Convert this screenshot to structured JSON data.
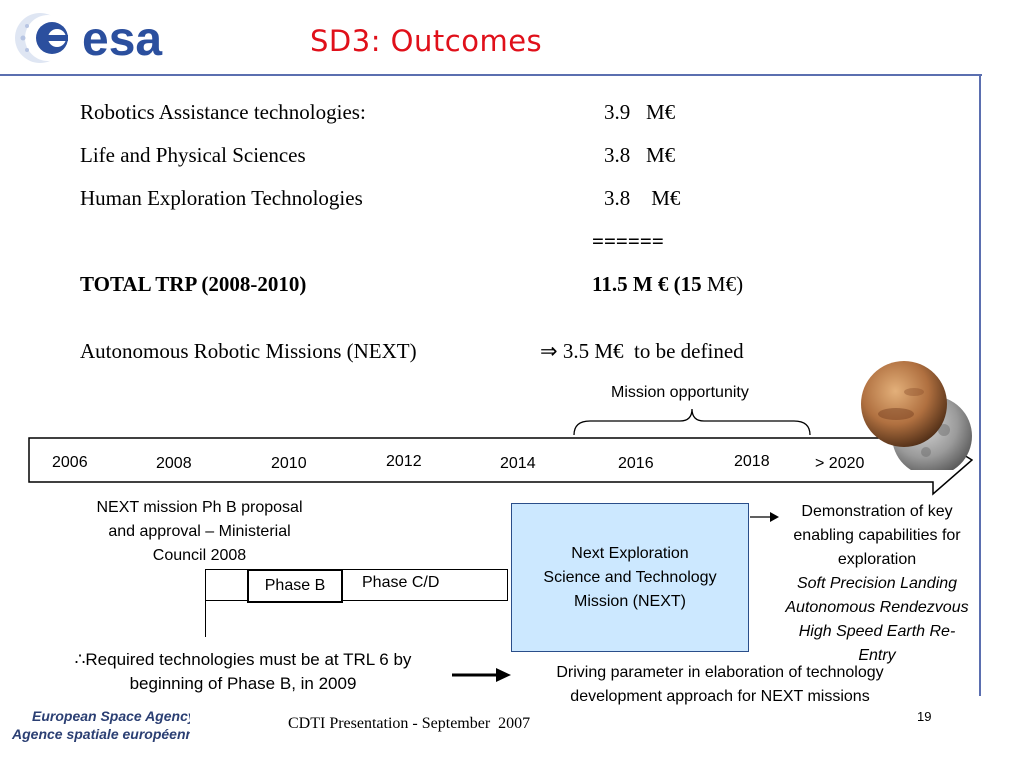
{
  "header": {
    "logo_text": "esa",
    "title": "SD3: Outcomes"
  },
  "budget": {
    "rows": [
      {
        "label": "Robotics Assistance technologies:",
        "value": "3.9   M€"
      },
      {
        "label": "Life and Physical Sciences",
        "value": "3.8   M€"
      },
      {
        "label": "Human Exploration Technologies",
        "value": "3.8    M€"
      }
    ],
    "separator": "======",
    "total_label": "TOTAL TRP (2008-2010)",
    "total_value": "11.5 M € (15",
    "total_value_suffix": " M€)",
    "next_label": "Autonomous Robotic Missions (NEXT)",
    "next_arrow": "⇒",
    "next_value": "3.5 M€  to be defined"
  },
  "timeline": {
    "mission_opportunity": "Mission opportunity",
    "years": [
      "2006",
      "2008",
      "2010",
      "2012",
      "2014",
      "2016",
      "2018",
      "> 2020"
    ]
  },
  "next_proposal": {
    "lines": [
      "NEXT mission Ph B proposal",
      "and approval – Ministerial",
      "Council 2008"
    ]
  },
  "phases": {
    "phase_b": "Phase B",
    "phase_cd": "Phase C/D"
  },
  "next_box": {
    "lines": [
      "Next Exploration",
      "Science and Technology",
      "Mission (NEXT)"
    ]
  },
  "demonstration": {
    "lines": [
      "Demonstration of key",
      "enabling capabilities for",
      "exploration"
    ],
    "italic_lines": [
      "Soft Precision Landing",
      "Autonomous Rendezvous",
      "High Speed Earth Re-",
      "Entry"
    ]
  },
  "requirement": {
    "symbol": "∴",
    "line1": "Required technologies must be at TRL 6 by",
    "line2": "beginning of Phase B, in 2009"
  },
  "driving": {
    "line1": "Driving parameter in elaboration of technology",
    "line2": "development approach for NEXT missions"
  },
  "footer": {
    "agency_en": "European Space Agency",
    "agency_fr": "Agence spatiale européenne",
    "presentation": "CDTI Presentation - September  2007",
    "page": "19"
  },
  "colors": {
    "title": "#e0101a",
    "rule": "#5b6fb0",
    "next_box_fill": "#cce8ff",
    "logo_blue": "#2b4f9e"
  }
}
